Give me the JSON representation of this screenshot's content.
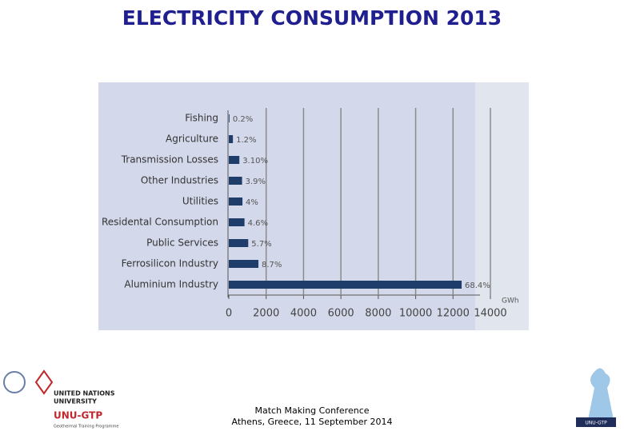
{
  "chart_data": {
    "type": "bar",
    "title": "ELECTRICITY CONSUMPTION 2013",
    "categories": [
      "Fishing",
      "Agriculture",
      "Transmission Losses",
      "Other Industries",
      "Utilities",
      "Residental Consumption",
      "Public Services",
      "Ferrosilicon Industry",
      "Aluminium Industry"
    ],
    "values": [
      36,
      220,
      565,
      710,
      730,
      840,
      1040,
      1585,
      12460
    ],
    "shares": [
      0.2,
      1.2,
      3.1,
      3.9,
      4,
      4.6,
      5.7,
      8.7,
      68.4
    ],
    "share_labels": [
      "0.2%",
      "1.2%",
      "3.10%",
      "3.9%",
      "4%",
      "4.6%",
      "5.7%",
      "8.7%",
      "68.4%"
    ],
    "color": "#1f3d6b",
    "x_label": "GWh",
    "xlim": [
      0,
      14000
    ],
    "xticks": [
      0,
      2000,
      4000,
      6000,
      8000,
      10000,
      12000,
      14000
    ],
    "grid": true
  },
  "footer": {
    "event": "Match Making Conference",
    "place_date": "Athens, Greece, 11 September 2014"
  },
  "logo": {
    "line1": "UNITED NATIONS",
    "line2": "UNIVERSITY",
    "program": "UNU-GTP",
    "program_full": "Geothermal Training Programme",
    "right_badge": "UNU-GTP"
  }
}
